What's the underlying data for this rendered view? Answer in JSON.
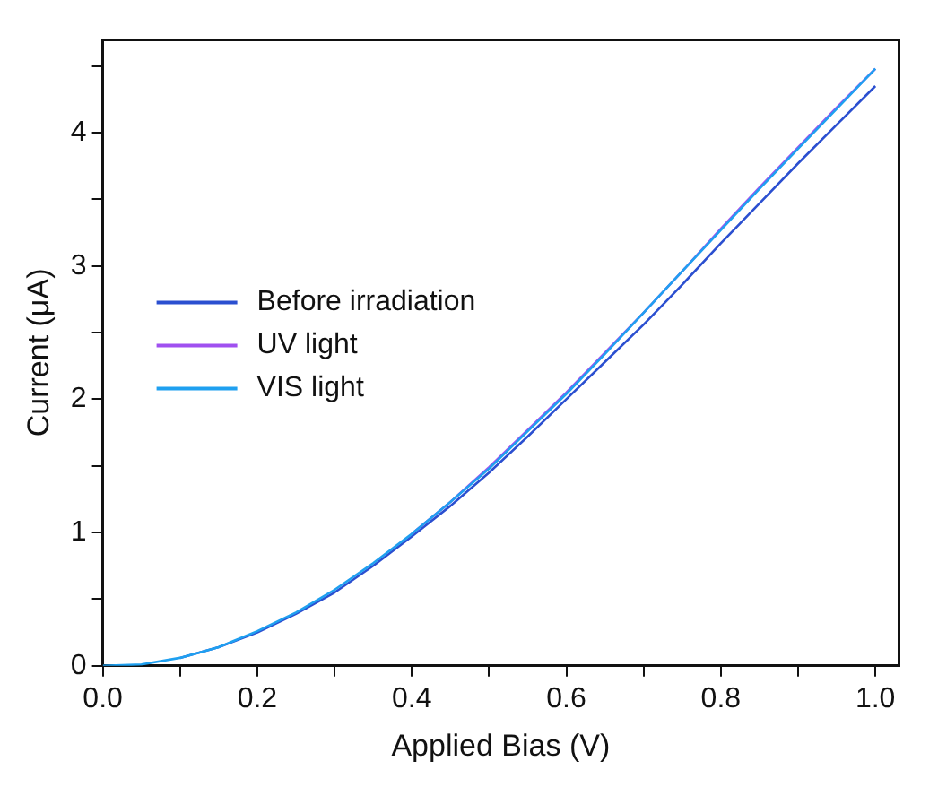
{
  "chart_data": {
    "type": "line",
    "xlabel": "Applied Bias (V)",
    "ylabel": "Current (μA)",
    "x": [
      0,
      0.05,
      0.1,
      0.15,
      0.2,
      0.25,
      0.3,
      0.35,
      0.4,
      0.45,
      0.5,
      0.55,
      0.6,
      0.65,
      0.7,
      0.75,
      0.8,
      0.85,
      0.9,
      0.95,
      1.0
    ],
    "series": [
      {
        "name": "Before irradiation",
        "color": "#2b4fd0",
        "values": [
          null,
          null,
          0.06,
          0.14,
          0.25,
          0.39,
          0.55,
          0.75,
          0.97,
          1.2,
          1.45,
          1.72,
          2.0,
          2.28,
          2.56,
          2.86,
          3.17,
          3.47,
          3.77,
          4.06,
          4.35
        ]
      },
      {
        "name": "UV light",
        "color": "#a050f0",
        "values": [
          null,
          null,
          null,
          null,
          null,
          null,
          null,
          null,
          0.99,
          1.23,
          1.49,
          1.77,
          2.05,
          2.35,
          2.65,
          2.96,
          3.28,
          3.59,
          3.89,
          4.19,
          4.48
        ]
      },
      {
        "name": "VIS light",
        "color": "#1fa0f0",
        "values": [
          0,
          0.01,
          0.06,
          0.14,
          0.26,
          0.4,
          0.57,
          0.77,
          0.99,
          1.23,
          1.48,
          1.76,
          2.04,
          2.34,
          2.65,
          2.96,
          3.27,
          3.58,
          3.88,
          4.18,
          4.48
        ]
      }
    ],
    "xlim": [
      0,
      1.03
    ],
    "xticks": [
      {
        "value": 0,
        "label": "0.0"
      },
      {
        "value": 0.1,
        "label": null
      },
      {
        "value": 0.2,
        "label": "0.2"
      },
      {
        "value": 0.3,
        "label": null
      },
      {
        "value": 0.4,
        "label": "0.4"
      },
      {
        "value": 0.5,
        "label": null
      },
      {
        "value": 0.6,
        "label": "0.6"
      },
      {
        "value": 0.7,
        "label": null
      },
      {
        "value": 0.8,
        "label": "0.8"
      },
      {
        "value": 0.9,
        "label": null
      },
      {
        "value": 1.0,
        "label": "1.0"
      }
    ],
    "ylim": [
      0,
      4.7
    ],
    "yticks": [
      0,
      {
        "value": 0.5,
        "label": null
      },
      1,
      {
        "value": 1.5,
        "label": null
      },
      2,
      {
        "value": 2.5,
        "label": null
      },
      3,
      {
        "value": 3.5,
        "label": null
      },
      4,
      {
        "value": 4.5,
        "label": null
      }
    ],
    "grid": false,
    "legend": "center left",
    "marker": "none",
    "line_style": "solid"
  }
}
